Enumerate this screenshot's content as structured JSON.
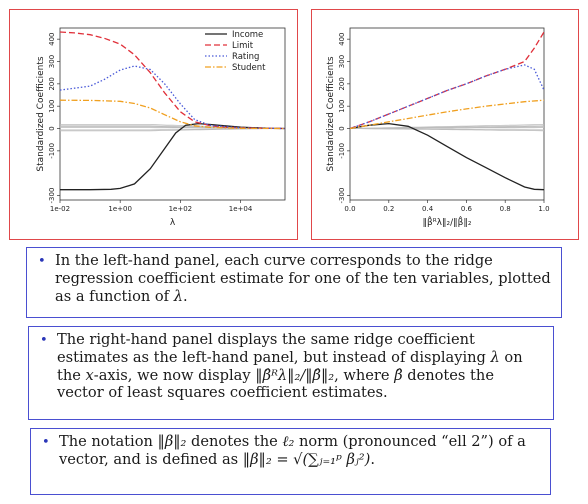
{
  "chart_data": [
    {
      "type": "line",
      "xlabel": "λ",
      "ylabel": "Standardized Coefficients",
      "xscale": "log",
      "xlim": [
        0.01,
        300000
      ],
      "ylim": [
        -320,
        450
      ],
      "xticks": [
        "1e-02",
        "1e+00",
        "1e+02",
        "1e+04"
      ],
      "yticks": [
        -300,
        -100,
        0,
        100,
        200,
        300,
        400
      ],
      "legend_position": "top-right",
      "series": [
        {
          "name": "Income",
          "color": "#222222",
          "style": "solid",
          "x": [
            0.01,
            0.1,
            0.5,
            1,
            3,
            10,
            30,
            70,
            150,
            400,
            1000,
            3000,
            10000,
            100000,
            300000
          ],
          "y": [
            -274,
            -274,
            -272,
            -268,
            -248,
            -180,
            -90,
            -20,
            15,
            22,
            18,
            12,
            6,
            1,
            0
          ]
        },
        {
          "name": "Limit",
          "color": "#e0303a",
          "style": "dashed",
          "x": [
            0.01,
            0.03,
            0.1,
            0.3,
            1,
            3,
            10,
            30,
            100,
            300,
            1000,
            3000,
            10000,
            100000,
            300000
          ],
          "y": [
            432,
            428,
            420,
            404,
            378,
            330,
            250,
            160,
            75,
            30,
            12,
            6,
            3,
            1,
            0
          ]
        },
        {
          "name": "Rating",
          "color": "#4a5ad8",
          "style": "dotted",
          "x": [
            0.01,
            0.1,
            0.3,
            1,
            3,
            10,
            30,
            100,
            300,
            1000,
            10000,
            300000
          ],
          "y": [
            172,
            190,
            220,
            262,
            280,
            264,
            200,
            110,
            40,
            14,
            3,
            0
          ]
        },
        {
          "name": "Student",
          "color": "#f0a020",
          "style": "dashdot",
          "x": [
            0.01,
            0.1,
            1,
            3,
            10,
            30,
            100,
            300,
            1000,
            10000,
            300000
          ],
          "y": [
            127,
            126,
            122,
            112,
            92,
            62,
            30,
            12,
            5,
            1,
            0
          ]
        }
      ]
    },
    {
      "type": "line",
      "xlabel": "‖β̂ᴿλ‖₂/‖β̂‖₂",
      "ylabel": "Standardized Coefficients",
      "xlim": [
        0,
        1
      ],
      "ylim": [
        -320,
        450
      ],
      "xticks": [
        0.0,
        0.2,
        0.4,
        0.6,
        0.8,
        1.0
      ],
      "yticks": [
        -300,
        -100,
        0,
        100,
        200,
        300,
        400
      ],
      "series": [
        {
          "color": "#222222",
          "style": "solid",
          "x": [
            0,
            0.1,
            0.2,
            0.3,
            0.4,
            0.5,
            0.6,
            0.7,
            0.8,
            0.9,
            0.95,
            1.0
          ],
          "y": [
            0,
            15,
            22,
            10,
            -30,
            -80,
            -130,
            -175,
            -220,
            -262,
            -272,
            -274
          ]
        },
        {
          "color": "#e0303a",
          "style": "dashed",
          "x": [
            0,
            0.1,
            0.2,
            0.3,
            0.4,
            0.5,
            0.6,
            0.7,
            0.8,
            0.9,
            0.95,
            1.0
          ],
          "y": [
            0,
            30,
            65,
            100,
            135,
            170,
            200,
            235,
            265,
            300,
            360,
            432
          ]
        },
        {
          "color": "#4a5ad8",
          "style": "dotted",
          "x": [
            0,
            0.1,
            0.2,
            0.3,
            0.4,
            0.5,
            0.6,
            0.7,
            0.8,
            0.9,
            0.95,
            1.0
          ],
          "y": [
            0,
            30,
            65,
            100,
            135,
            170,
            200,
            235,
            265,
            285,
            265,
            172
          ]
        },
        {
          "color": "#f0a020",
          "style": "dashdot",
          "x": [
            0,
            0.1,
            0.2,
            0.3,
            0.4,
            0.5,
            0.6,
            0.7,
            0.8,
            0.9,
            1.0
          ],
          "y": [
            0,
            15,
            30,
            45,
            60,
            75,
            88,
            100,
            110,
            120,
            127
          ]
        }
      ]
    }
  ],
  "grey_curves_color": "#bdbdbd",
  "text": {
    "bullet": "•",
    "p1_a": "In the left-hand panel, each curve corresponds to the ridge regression coefficient estimate for one of the ten variables, plotted as a function of ",
    "p1_lambda": "λ",
    "p1_end": ".",
    "p2_a": "The right-hand panel displays the same ridge coefficient estimates as the left-hand panel, but instead of displaying ",
    "p2_lambda": "λ",
    "p2_b": " on the ",
    "p2_x": "x",
    "p2_c": "-axis, we now display ",
    "p2_norm": "‖β̂ᴿλ‖₂/‖β̂‖₂",
    "p2_d": ", where ",
    "p2_beta": "β̂",
    "p2_e": " denotes the vector of least squares coefficient estimates.",
    "p3_a": "The notation ",
    "p3_norm": "‖β‖₂",
    "p3_b": " denotes the ",
    "p3_ell": "ℓ₂",
    "p3_c": " norm (pronounced “ell 2”) of a vector, and is defined as ",
    "p3_def": "‖β‖₂ = √(∑ⱼ₌₁ᵖ βⱼ²)",
    "p3_end": "."
  }
}
